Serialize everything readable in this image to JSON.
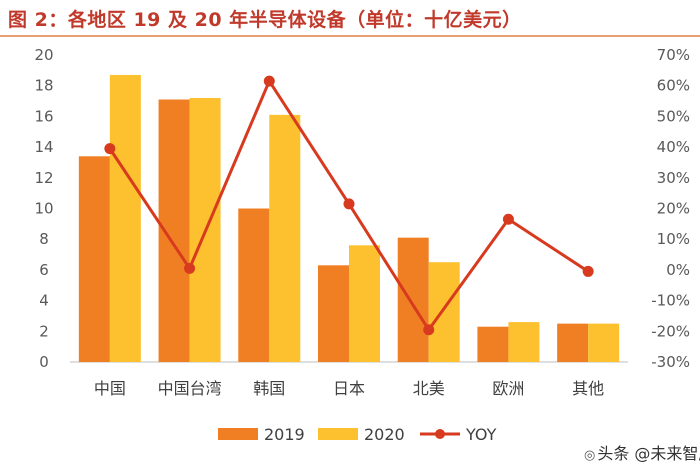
{
  "header": {
    "title": "图 2：各地区 19 及 20 年半导体设备（单位：十亿美元）"
  },
  "colors": {
    "series_2019": "#f07f23",
    "series_2020": "#fdc02f",
    "yoy": "#d73a1e",
    "axis": "#bfbfbf",
    "header": "#c0392b"
  },
  "chart_data": {
    "type": "bar",
    "title": "各地区 19 及 20 年半导体设备（单位：十亿美元）",
    "categories": [
      "中国",
      "中国台湾",
      "韩国",
      "日本",
      "北美",
      "欧洲",
      "其他"
    ],
    "series": [
      {
        "name": "2019",
        "values": [
          13.4,
          17.1,
          10.0,
          6.3,
          8.1,
          2.3,
          2.5
        ]
      },
      {
        "name": "2020",
        "values": [
          18.7,
          17.2,
          16.1,
          7.6,
          6.5,
          2.6,
          2.5
        ]
      }
    ],
    "line_series": {
      "name": "YOY",
      "values": [
        39.5,
        0.5,
        61.5,
        21.5,
        -19.5,
        16.5,
        -0.5
      ]
    },
    "ylim": [
      0,
      20
    ],
    "y_ticks": [
      "0",
      "2",
      "4",
      "6",
      "8",
      "10",
      "12",
      "14",
      "16",
      "18",
      "20"
    ],
    "y2lim": [
      -30,
      70
    ],
    "y2_ticks": [
      "-30%",
      "-20%",
      "-10%",
      "0%",
      "10%",
      "20%",
      "30%",
      "40%",
      "50%",
      "60%",
      "70%"
    ],
    "legend": [
      "2019",
      "2020",
      "YOY"
    ],
    "legend_position": "bottom"
  },
  "watermark": {
    "text": "头条 @未来智库"
  }
}
